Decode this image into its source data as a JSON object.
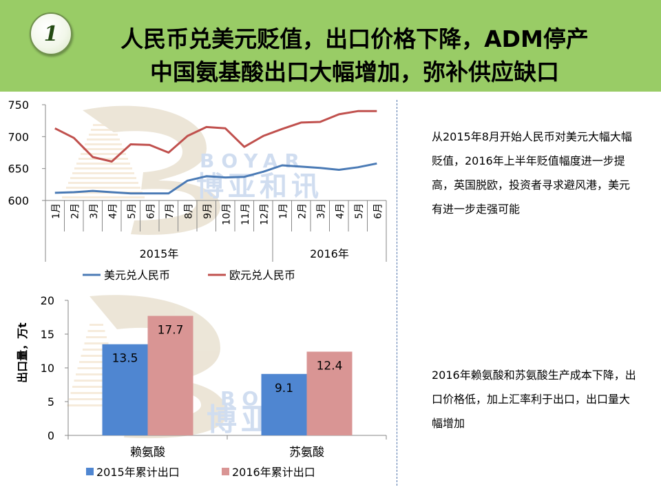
{
  "slide": {
    "badge_number": "1",
    "title_line1": "人民币兑美元贬值，出口价格下降，ADM停产",
    "title_line2": "中国氨基酸出口大幅增加，弥补供应缺口",
    "note1": "从2015年8月开始人民币对美元大幅大幅贬值，2016年上半年贬值幅度进一步提高，英国脱欧，投资者寻求避风港，美元有进一步走强可能",
    "note2": "2016年赖氨酸和苏氨酸生产成本下降，出口价格低，加上汇率利于出口，出口量大幅增加",
    "watermark_en": "BOYAR",
    "watermark_cn": "博亚和讯"
  },
  "chart_data": [
    {
      "type": "line",
      "x": [
        "1月",
        "2月",
        "3月",
        "4月",
        "5月",
        "6月",
        "7月",
        "8月",
        "9月",
        "10月",
        "11月",
        "12月",
        "1月",
        "2月",
        "3月",
        "4月",
        "5月",
        "6月"
      ],
      "x_groups": [
        {
          "label": "2015年",
          "count": 12
        },
        {
          "label": "2016年",
          "count": 6
        }
      ],
      "series": [
        {
          "name": "美元兑人民币",
          "color": "#4a7ab5",
          "values": [
            612,
            613,
            615,
            613,
            611,
            611,
            611,
            631,
            638,
            636,
            637,
            645,
            655,
            653,
            651,
            648,
            652,
            658
          ]
        },
        {
          "name": "欧元兑人民币",
          "color": "#c0504d",
          "values": [
            713,
            698,
            668,
            661,
            688,
            687,
            675,
            701,
            715,
            713,
            684,
            701,
            712,
            722,
            723,
            735,
            740,
            740
          ]
        }
      ],
      "ylim": [
        600,
        750
      ],
      "yticks": [
        600,
        650,
        700,
        750
      ],
      "title": "",
      "xlabel": "",
      "ylabel": "",
      "legend": "bottom",
      "grid": false
    },
    {
      "type": "bar",
      "categories": [
        "赖氨酸",
        "苏氨酸"
      ],
      "series": [
        {
          "name": "2015年累计出口",
          "color": "#4f86d1",
          "values": [
            13.5,
            9.1
          ]
        },
        {
          "name": "2016年累计出口",
          "color": "#d99594",
          "values": [
            17.7,
            12.4
          ]
        }
      ],
      "ylim": [
        0,
        20
      ],
      "yticks": [
        0,
        5,
        10,
        15,
        20
      ],
      "ylabel": "出口量，万t",
      "title": "",
      "xlabel": "",
      "legend": "bottom",
      "grid": false
    }
  ]
}
